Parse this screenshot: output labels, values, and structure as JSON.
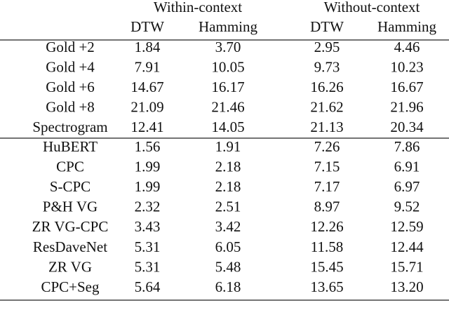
{
  "table": {
    "groups": [
      "Within-context",
      "Without-context"
    ],
    "columns": [
      "DTW",
      "Hamming",
      "DTW",
      "Hamming"
    ],
    "sections": [
      [
        [
          "Gold +2",
          "1.84",
          "3.70",
          "2.95",
          "4.46"
        ],
        [
          "Gold +4",
          "7.91",
          "10.05",
          "9.73",
          "10.23"
        ],
        [
          "Gold +6",
          "14.67",
          "16.17",
          "16.26",
          "16.67"
        ],
        [
          "Gold +8",
          "21.09",
          "21.46",
          "21.62",
          "21.96"
        ],
        [
          "Spectrogram",
          "12.41",
          "14.05",
          "21.13",
          "20.34"
        ]
      ],
      [
        [
          "HuBERT",
          "1.56",
          "1.91",
          "7.26",
          "7.86"
        ],
        [
          "CPC",
          "1.99",
          "2.18",
          "7.15",
          "6.91"
        ],
        [
          "S-CPC",
          "1.99",
          "2.18",
          "7.17",
          "6.97"
        ],
        [
          "P&H VG",
          "2.32",
          "2.51",
          "8.97",
          "9.52"
        ],
        [
          "ZR VG-CPC",
          "3.43",
          "3.42",
          "12.26",
          "12.59"
        ],
        [
          "ResDaveNet",
          "5.31",
          "6.05",
          "11.58",
          "12.44"
        ],
        [
          "ZR VG",
          "5.31",
          "5.48",
          "15.45",
          "15.71"
        ],
        [
          "CPC+Seg",
          "5.64",
          "6.18",
          "13.65",
          "13.20"
        ]
      ]
    ]
  }
}
